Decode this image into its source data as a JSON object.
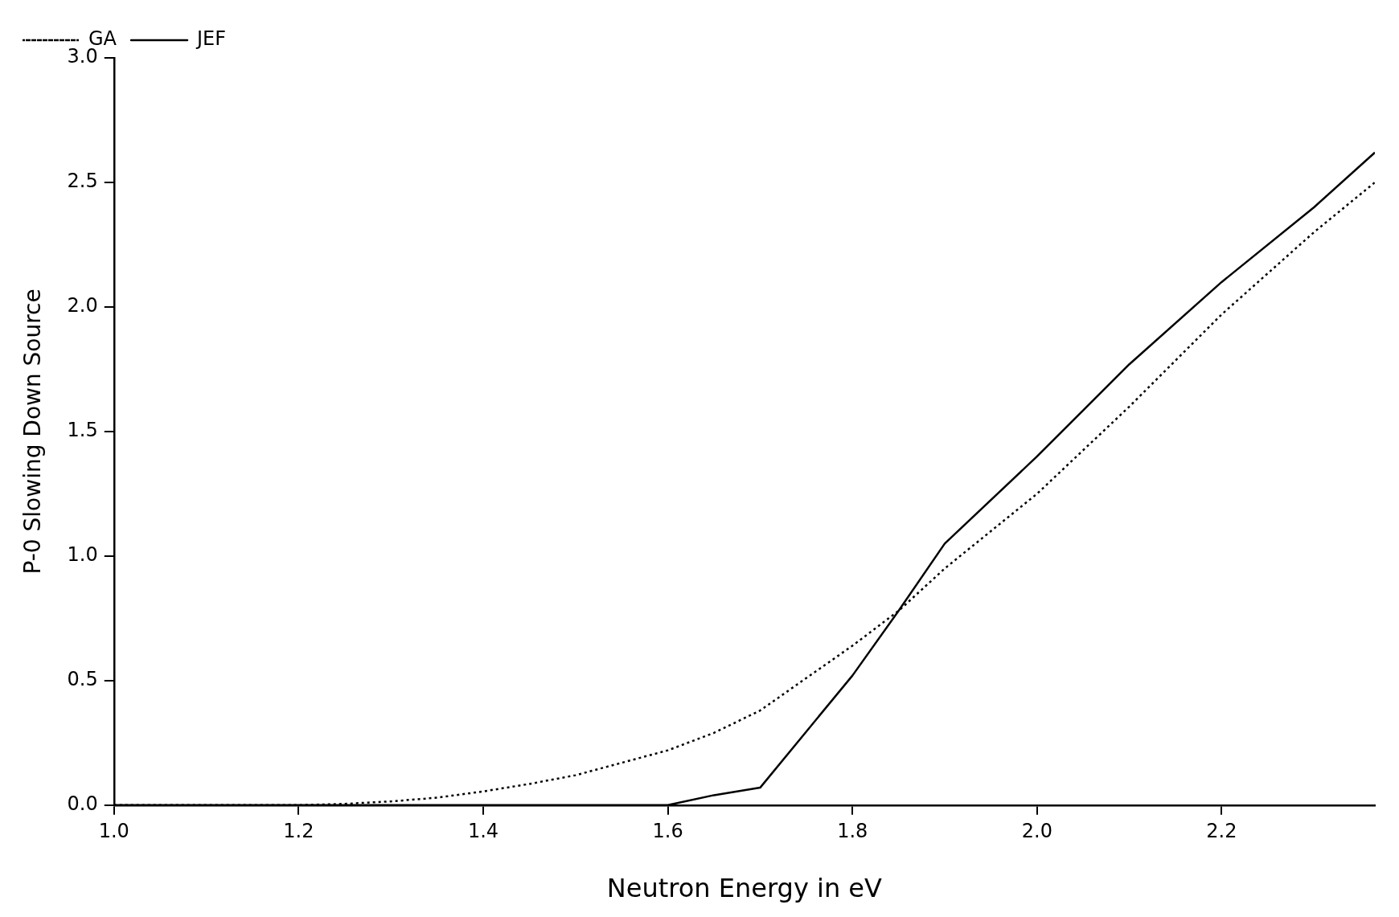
{
  "chart_data": {
    "type": "line",
    "xlabel": "Neutron Energy in eV",
    "ylabel": "P-0 Slowing Down Source",
    "x": [
      1.0,
      1.2,
      1.25,
      1.3,
      1.35,
      1.4,
      1.45,
      1.5,
      1.6,
      1.65,
      1.7,
      1.8,
      1.85,
      1.9,
      2.0,
      2.1,
      2.2,
      2.3,
      2.366
    ],
    "series": [
      {
        "name": "GA",
        "color": "#000000",
        "line_style": "dotted",
        "values": [
          0,
          0,
          0.005,
          0.015,
          0.03,
          0.055,
          0.085,
          0.12,
          0.22,
          0.29,
          0.38,
          0.64,
          0.78,
          0.95,
          1.25,
          1.6,
          1.97,
          2.3,
          2.5
        ]
      },
      {
        "name": "JEF",
        "color": "#000000",
        "line_style": "solid",
        "values": [
          0,
          0,
          0,
          0,
          0,
          0,
          0,
          0,
          0,
          0.04,
          0.07,
          0.52,
          0.78,
          1.05,
          1.4,
          1.77,
          2.1,
          2.4,
          2.62
        ]
      }
    ],
    "xlim": [
      1.0,
      2.366
    ],
    "xticks": [
      {
        "value": 1.0,
        "label": "1.0"
      },
      1.2,
      1.4,
      1.6,
      1.8,
      {
        "value": 2.0,
        "label": "2.0"
      },
      2.2
    ],
    "ylim": [
      0,
      3.0
    ],
    "yticks": [
      {
        "value": 0,
        "label": "0.0"
      },
      0.5,
      {
        "value": 1.0,
        "label": "1.0"
      },
      1.5,
      {
        "value": 2.0,
        "label": "2.0"
      },
      2.5,
      {
        "value": 3.0,
        "label": "3.0"
      }
    ],
    "grid": false,
    "legend": "top left",
    "marker": "none"
  }
}
